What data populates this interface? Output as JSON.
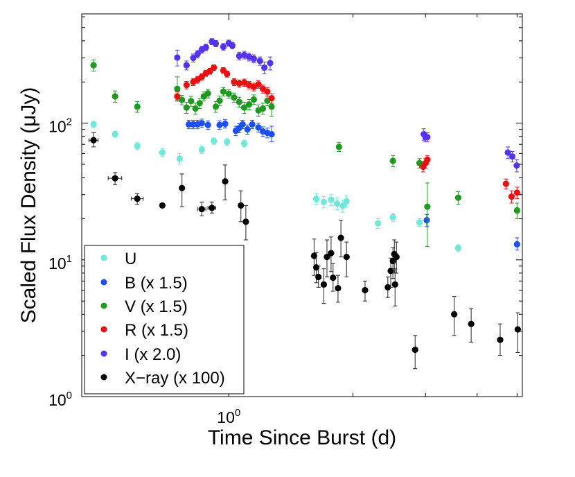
{
  "chart_data": {
    "type": "scatter",
    "xscale": "log",
    "yscale": "log",
    "xlim": [
      0.44,
      5.15
    ],
    "ylim": [
      1,
      630
    ],
    "xlabel": "Time Since Burst (d)",
    "ylabel": "Scaled Flux Density (μJy)",
    "x_ticks": [
      {
        "value": 1,
        "base": "10",
        "exp": "0"
      }
    ],
    "y_ticks": [
      {
        "value": 1,
        "base": "10",
        "exp": "0"
      },
      {
        "value": 10,
        "base": "10",
        "exp": "1"
      },
      {
        "value": 100,
        "base": "10",
        "exp": "2"
      }
    ],
    "legend_position": "bottom-left",
    "series": [
      {
        "name": "U",
        "color": "#6ee8d8",
        "points": [
          {
            "x": 0.47,
            "y": 98,
            "el": 5,
            "eh": 5
          },
          {
            "x": 0.53,
            "y": 83,
            "el": 4,
            "eh": 4
          },
          {
            "x": 0.6,
            "y": 68,
            "el": 4,
            "eh": 4
          },
          {
            "x": 0.69,
            "y": 61,
            "el": 4,
            "eh": 4
          },
          {
            "x": 0.76,
            "y": 55,
            "el": 5,
            "eh": 5
          },
          {
            "x": 0.86,
            "y": 64,
            "el": 4,
            "eh": 4
          },
          {
            "x": 0.92,
            "y": 74,
            "el": 4,
            "eh": 4
          },
          {
            "x": 0.99,
            "y": 73,
            "el": 4,
            "eh": 4
          },
          {
            "x": 1.09,
            "y": 71,
            "el": 4,
            "eh": 4
          },
          {
            "x": 1.63,
            "y": 28,
            "el": 2.5,
            "eh": 2.5
          },
          {
            "x": 1.7,
            "y": 26.5,
            "el": 2.5,
            "eh": 2.5
          },
          {
            "x": 1.77,
            "y": 27.5,
            "el": 2.5,
            "eh": 2.5
          },
          {
            "x": 1.83,
            "y": 25.8,
            "el": 2.5,
            "eh": 2.5
          },
          {
            "x": 1.89,
            "y": 24.8,
            "el": 2.5,
            "eh": 2.5
          },
          {
            "x": 1.93,
            "y": 26.8,
            "el": 2.5,
            "eh": 2.5
          },
          {
            "x": 2.3,
            "y": 18.5,
            "el": 1.5,
            "eh": 1.5
          },
          {
            "x": 2.5,
            "y": 20.5,
            "el": 1.5,
            "eh": 1.5
          },
          {
            "x": 2.9,
            "y": 18.8,
            "el": 1.2,
            "eh": 1.2
          },
          {
            "x": 3.6,
            "y": 12.2,
            "el": 0.7,
            "eh": 0.7
          }
        ]
      },
      {
        "name": "B (x 1.5)",
        "color": "#1e4ff0",
        "points": [
          {
            "x": 0.8,
            "y": 98,
            "el": 7,
            "eh": 7
          },
          {
            "x": 0.82,
            "y": 98,
            "el": 7,
            "eh": 7
          },
          {
            "x": 0.84,
            "y": 98,
            "el": 7,
            "eh": 7
          },
          {
            "x": 0.86,
            "y": 100,
            "el": 7,
            "eh": 7
          },
          {
            "x": 0.89,
            "y": 97,
            "el": 7,
            "eh": 7
          },
          {
            "x": 0.95,
            "y": 97,
            "el": 7,
            "eh": 7
          },
          {
            "x": 0.98,
            "y": 99,
            "el": 7,
            "eh": 7
          },
          {
            "x": 1.04,
            "y": 88,
            "el": 7,
            "eh": 7
          },
          {
            "x": 1.06,
            "y": 92,
            "el": 7,
            "eh": 7
          },
          {
            "x": 1.08,
            "y": 98,
            "el": 7,
            "eh": 7
          },
          {
            "x": 1.11,
            "y": 90,
            "el": 7,
            "eh": 7
          },
          {
            "x": 1.14,
            "y": 98,
            "el": 7,
            "eh": 7
          },
          {
            "x": 1.18,
            "y": 93,
            "el": 7,
            "eh": 7
          },
          {
            "x": 1.21,
            "y": 87,
            "el": 7,
            "eh": 7
          },
          {
            "x": 1.24,
            "y": 85,
            "el": 7,
            "eh": 7
          },
          {
            "x": 1.27,
            "y": 83,
            "el": 10,
            "eh": 12
          },
          {
            "x": 3.02,
            "y": 19.5,
            "el": 2,
            "eh": 2
          },
          {
            "x": 5.0,
            "y": 13,
            "el": 1.2,
            "eh": 1.5
          }
        ]
      },
      {
        "name": "V (x 1.5)",
        "color": "#1f9a1f",
        "points": [
          {
            "x": 0.47,
            "y": 265,
            "el": 25,
            "eh": 25
          },
          {
            "x": 0.53,
            "y": 157,
            "el": 15,
            "eh": 15
          },
          {
            "x": 0.6,
            "y": 132,
            "el": 12,
            "eh": 12
          },
          {
            "x": 0.75,
            "y": 178,
            "el": 30,
            "eh": 40
          },
          {
            "x": 0.77,
            "y": 148,
            "el": 12,
            "eh": 12
          },
          {
            "x": 0.79,
            "y": 130,
            "el": 12,
            "eh": 12
          },
          {
            "x": 0.81,
            "y": 145,
            "el": 12,
            "eh": 12
          },
          {
            "x": 0.83,
            "y": 128,
            "el": 12,
            "eh": 12
          },
          {
            "x": 0.85,
            "y": 140,
            "el": 12,
            "eh": 12
          },
          {
            "x": 0.87,
            "y": 157,
            "el": 12,
            "eh": 12
          },
          {
            "x": 0.89,
            "y": 165,
            "el": 12,
            "eh": 12
          },
          {
            "x": 0.93,
            "y": 132,
            "el": 12,
            "eh": 12
          },
          {
            "x": 0.95,
            "y": 146,
            "el": 12,
            "eh": 12
          },
          {
            "x": 0.97,
            "y": 170,
            "el": 12,
            "eh": 12
          },
          {
            "x": 1.0,
            "y": 164,
            "el": 12,
            "eh": 12
          },
          {
            "x": 1.03,
            "y": 154,
            "el": 12,
            "eh": 12
          },
          {
            "x": 1.06,
            "y": 143,
            "el": 12,
            "eh": 12
          },
          {
            "x": 1.09,
            "y": 130,
            "el": 12,
            "eh": 12
          },
          {
            "x": 1.12,
            "y": 137,
            "el": 12,
            "eh": 12
          },
          {
            "x": 1.15,
            "y": 149,
            "el": 12,
            "eh": 12
          },
          {
            "x": 1.18,
            "y": 124,
            "el": 12,
            "eh": 12
          },
          {
            "x": 1.21,
            "y": 128,
            "el": 12,
            "eh": 12
          },
          {
            "x": 1.24,
            "y": 146,
            "el": 12,
            "eh": 12
          },
          {
            "x": 1.27,
            "y": 132,
            "el": 20,
            "eh": 25
          },
          {
            "x": 1.85,
            "y": 67,
            "el": 5,
            "eh": 5
          },
          {
            "x": 2.5,
            "y": 53,
            "el": 5,
            "eh": 5
          },
          {
            "x": 2.9,
            "y": 51,
            "el": 4,
            "eh": 4
          },
          {
            "x": 3.03,
            "y": 24.5,
            "el": 12,
            "eh": 12
          },
          {
            "x": 3.6,
            "y": 28.5,
            "el": 3,
            "eh": 3
          },
          {
            "x": 5.0,
            "y": 23,
            "el": 3,
            "eh": 3
          }
        ]
      },
      {
        "name": "R (x 1.5)",
        "color": "#e81010",
        "points": [
          {
            "x": 0.75,
            "y": 157,
            "el": 12,
            "eh": 12
          },
          {
            "x": 0.79,
            "y": 190,
            "el": 12,
            "eh": 12
          },
          {
            "x": 0.82,
            "y": 200,
            "el": 12,
            "eh": 12
          },
          {
            "x": 0.84,
            "y": 208,
            "el": 12,
            "eh": 12
          },
          {
            "x": 0.86,
            "y": 218,
            "el": 12,
            "eh": 12
          },
          {
            "x": 0.88,
            "y": 232,
            "el": 12,
            "eh": 12
          },
          {
            "x": 0.9,
            "y": 240,
            "el": 12,
            "eh": 12
          },
          {
            "x": 0.92,
            "y": 255,
            "el": 12,
            "eh": 12
          },
          {
            "x": 0.97,
            "y": 243,
            "el": 12,
            "eh": 12
          },
          {
            "x": 0.99,
            "y": 229,
            "el": 12,
            "eh": 12
          },
          {
            "x": 1.03,
            "y": 200,
            "el": 12,
            "eh": 12
          },
          {
            "x": 1.06,
            "y": 195,
            "el": 12,
            "eh": 12
          },
          {
            "x": 1.09,
            "y": 198,
            "el": 12,
            "eh": 12
          },
          {
            "x": 1.12,
            "y": 190,
            "el": 12,
            "eh": 12
          },
          {
            "x": 1.15,
            "y": 184,
            "el": 12,
            "eh": 12
          },
          {
            "x": 1.18,
            "y": 192,
            "el": 12,
            "eh": 12
          },
          {
            "x": 1.21,
            "y": 178,
            "el": 12,
            "eh": 12
          },
          {
            "x": 1.24,
            "y": 170,
            "el": 12,
            "eh": 12
          },
          {
            "x": 1.27,
            "y": 152,
            "el": 12,
            "eh": 12
          },
          {
            "x": 2.96,
            "y": 48,
            "el": 4,
            "eh": 4
          },
          {
            "x": 3.0,
            "y": 51,
            "el": 4,
            "eh": 4
          },
          {
            "x": 3.03,
            "y": 54,
            "el": 4,
            "eh": 4
          },
          {
            "x": 4.7,
            "y": 36,
            "el": 3,
            "eh": 3
          },
          {
            "x": 4.85,
            "y": 29,
            "el": 3,
            "eh": 3
          },
          {
            "x": 5.0,
            "y": 31,
            "el": 3,
            "eh": 3
          }
        ]
      },
      {
        "name": "I (x 2.0)",
        "color": "#5533ee",
        "points": [
          {
            "x": 0.75,
            "y": 302,
            "el": 40,
            "eh": 40
          },
          {
            "x": 0.79,
            "y": 265,
            "el": 20,
            "eh": 20
          },
          {
            "x": 0.82,
            "y": 300,
            "el": 20,
            "eh": 20
          },
          {
            "x": 0.84,
            "y": 320,
            "el": 20,
            "eh": 20
          },
          {
            "x": 0.86,
            "y": 345,
            "el": 20,
            "eh": 20
          },
          {
            "x": 0.88,
            "y": 358,
            "el": 20,
            "eh": 20
          },
          {
            "x": 0.91,
            "y": 395,
            "el": 20,
            "eh": 20
          },
          {
            "x": 0.93,
            "y": 382,
            "el": 20,
            "eh": 20
          },
          {
            "x": 0.97,
            "y": 362,
            "el": 20,
            "eh": 20
          },
          {
            "x": 1.0,
            "y": 385,
            "el": 20,
            "eh": 20
          },
          {
            "x": 1.02,
            "y": 370,
            "el": 20,
            "eh": 20
          },
          {
            "x": 1.06,
            "y": 310,
            "el": 20,
            "eh": 20
          },
          {
            "x": 1.09,
            "y": 315,
            "el": 20,
            "eh": 20
          },
          {
            "x": 1.12,
            "y": 305,
            "el": 20,
            "eh": 20
          },
          {
            "x": 1.15,
            "y": 296,
            "el": 20,
            "eh": 20
          },
          {
            "x": 1.19,
            "y": 285,
            "el": 20,
            "eh": 20
          },
          {
            "x": 1.22,
            "y": 255,
            "el": 25,
            "eh": 25
          },
          {
            "x": 1.26,
            "y": 275,
            "el": 30,
            "eh": 30
          },
          {
            "x": 2.97,
            "y": 83,
            "el": 8,
            "eh": 8
          },
          {
            "x": 3.0,
            "y": 79,
            "el": 6,
            "eh": 6
          },
          {
            "x": 3.03,
            "y": 79,
            "el": 6,
            "eh": 6
          },
          {
            "x": 4.75,
            "y": 61,
            "el": 6,
            "eh": 6
          },
          {
            "x": 4.87,
            "y": 57,
            "el": 5,
            "eh": 5
          },
          {
            "x": 4.99,
            "y": 49,
            "el": 5,
            "eh": 5
          }
        ]
      },
      {
        "name": "X−ray (x 100)",
        "color": "#000000",
        "points": [
          {
            "x": 0.47,
            "y": 75,
            "el": 8,
            "eh": 10,
            "xl": 0.012,
            "xh": 0.012
          },
          {
            "x": 0.53,
            "y": 39.5,
            "el": 4,
            "eh": 4,
            "xl": 0.02,
            "xh": 0.02
          },
          {
            "x": 0.6,
            "y": 28,
            "el": 2.5,
            "eh": 2.5,
            "xl": 0.02,
            "xh": 0.02
          },
          {
            "x": 0.69,
            "y": 25,
            "el": 0.5,
            "eh": 0.5
          },
          {
            "x": 0.77,
            "y": 33.5,
            "el": 9,
            "eh": 9
          },
          {
            "x": 0.86,
            "y": 23.5,
            "el": 2.5,
            "eh": 3,
            "xl": 0.02,
            "xh": 0.02
          },
          {
            "x": 0.91,
            "y": 24,
            "el": 2,
            "eh": 2.5,
            "xl": 0.02,
            "xh": 0.02
          },
          {
            "x": 0.98,
            "y": 37.5,
            "el": 10,
            "eh": 12
          },
          {
            "x": 1.07,
            "y": 25,
            "el": 6,
            "eh": 7
          },
          {
            "x": 1.1,
            "y": 19,
            "el": 5,
            "eh": 6
          },
          {
            "x": 1.61,
            "y": 10.7,
            "el": 3,
            "eh": 3.5
          },
          {
            "x": 1.63,
            "y": 8.8,
            "el": 2,
            "eh": 2.5
          },
          {
            "x": 1.65,
            "y": 7.5,
            "el": 1.2,
            "eh": 1.5
          },
          {
            "x": 1.7,
            "y": 6.6,
            "el": 1.8,
            "eh": 2
          },
          {
            "x": 1.73,
            "y": 10.5,
            "el": 3,
            "eh": 3.5
          },
          {
            "x": 1.77,
            "y": 11.2,
            "el": 3,
            "eh": 3.5
          },
          {
            "x": 1.79,
            "y": 7.4,
            "el": 1.5,
            "eh": 2
          },
          {
            "x": 1.84,
            "y": 6.2,
            "el": 1.3,
            "eh": 1.5
          },
          {
            "x": 1.87,
            "y": 14.5,
            "el": 4,
            "eh": 5
          },
          {
            "x": 1.93,
            "y": 10.5,
            "el": 3,
            "eh": 3
          },
          {
            "x": 2.14,
            "y": 6.0,
            "el": 1,
            "eh": 1
          },
          {
            "x": 2.43,
            "y": 6.3,
            "el": 1,
            "eh": 1.2
          },
          {
            "x": 2.47,
            "y": 8.3,
            "el": 2,
            "eh": 2
          },
          {
            "x": 2.5,
            "y": 9.8,
            "el": 2.5,
            "eh": 2.5
          },
          {
            "x": 2.52,
            "y": 11.0,
            "el": 3,
            "eh": 3
          },
          {
            "x": 2.53,
            "y": 6.6,
            "el": 2,
            "eh": 2
          },
          {
            "x": 2.55,
            "y": 10.5,
            "el": 2.5,
            "eh": 3
          },
          {
            "x": 2.83,
            "y": 2.2,
            "el": 0.6,
            "eh": 0.6
          },
          {
            "x": 3.52,
            "y": 4.0,
            "el": 1.2,
            "eh": 1.4
          },
          {
            "x": 3.87,
            "y": 3.4,
            "el": 0.9,
            "eh": 1
          },
          {
            "x": 4.55,
            "y": 2.6,
            "el": 0.6,
            "eh": 0.8
          },
          {
            "x": 5.02,
            "y": 3.1,
            "el": 1,
            "eh": 1
          }
        ]
      }
    ]
  }
}
